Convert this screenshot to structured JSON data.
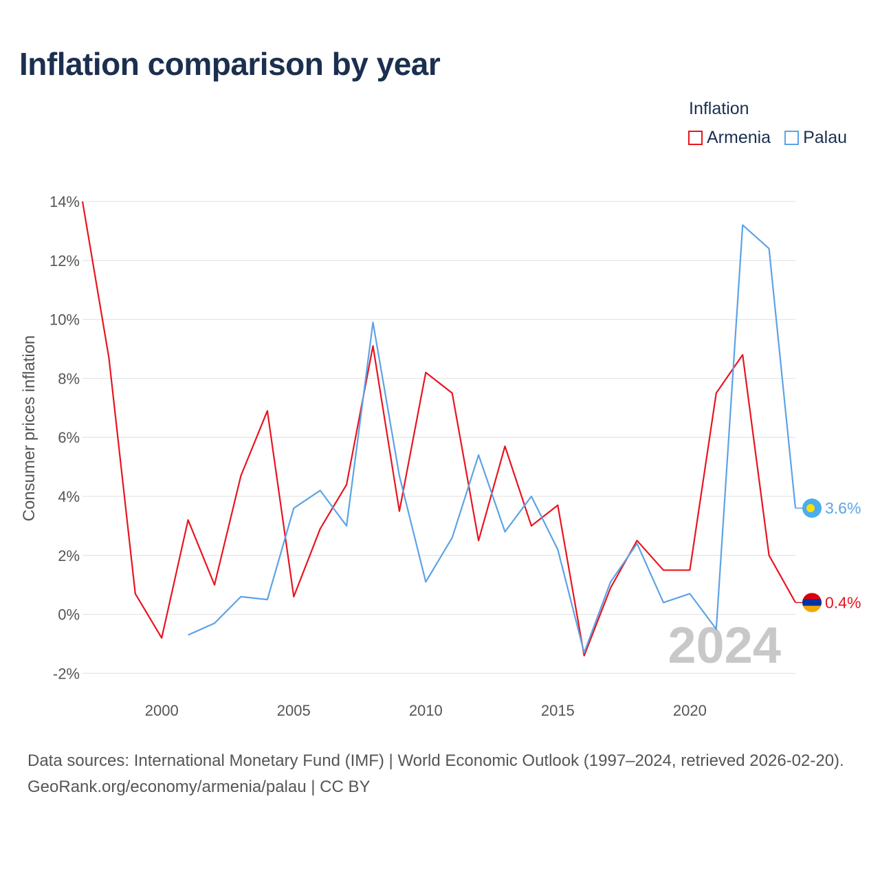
{
  "title": "Inflation comparison by year",
  "legend": {
    "title": "Inflation",
    "items": [
      {
        "label": "Armenia",
        "color": "#e8141e"
      },
      {
        "label": "Palau",
        "color": "#5ba3e6"
      }
    ]
  },
  "chart_data": {
    "type": "line",
    "title": "Inflation comparison by year",
    "xlabel": "",
    "ylabel": "Consumer prices inflation",
    "xlim": [
      1997,
      2024
    ],
    "ylim": [
      -2.5,
      14
    ],
    "x_ticks": [
      2000,
      2005,
      2010,
      2015,
      2020
    ],
    "y_ticks": [
      -2,
      0,
      2,
      4,
      6,
      8,
      10,
      12,
      14
    ],
    "y_tick_labels": [
      "-2%",
      "0%",
      "2%",
      "4%",
      "6%",
      "8%",
      "10%",
      "12%",
      "14%"
    ],
    "grid": true,
    "current_year": "2024",
    "series": [
      {
        "name": "Armenia",
        "color": "#e8141e",
        "x": [
          1997,
          1998,
          1999,
          2000,
          2001,
          2002,
          2003,
          2004,
          2005,
          2006,
          2007,
          2008,
          2009,
          2010,
          2011,
          2012,
          2013,
          2014,
          2015,
          2016,
          2017,
          2018,
          2019,
          2020,
          2021,
          2022,
          2023,
          2024
        ],
        "values": [
          14.0,
          8.7,
          0.7,
          -0.8,
          3.2,
          1.0,
          4.7,
          6.9,
          0.6,
          2.9,
          4.4,
          9.1,
          3.5,
          8.2,
          7.5,
          2.5,
          5.7,
          3.0,
          3.7,
          -1.4,
          0.9,
          2.5,
          1.5,
          1.5,
          7.5,
          8.8,
          2.0,
          0.4
        ],
        "end_label": "0.4%"
      },
      {
        "name": "Palau",
        "color": "#5ba3e6",
        "x": [
          2001,
          2002,
          2003,
          2004,
          2005,
          2006,
          2007,
          2008,
          2009,
          2010,
          2011,
          2012,
          2013,
          2014,
          2015,
          2016,
          2017,
          2018,
          2019,
          2020,
          2021,
          2022,
          2023,
          2024
        ],
        "values": [
          -0.7,
          -0.3,
          0.6,
          0.5,
          3.6,
          4.2,
          3.0,
          9.9,
          4.7,
          1.1,
          2.6,
          5.4,
          2.8,
          4.0,
          2.2,
          -1.3,
          1.1,
          2.4,
          0.4,
          0.7,
          -0.5,
          13.2,
          12.4,
          3.6
        ],
        "end_label": "3.6%"
      }
    ]
  },
  "source": {
    "line1": "Data sources: International Monetary Fund (IMF) | World Economic Outlook (1997–2024, retrieved 2026-02-20).",
    "line2": "GeoRank.org/economy/armenia/palau | CC BY"
  }
}
